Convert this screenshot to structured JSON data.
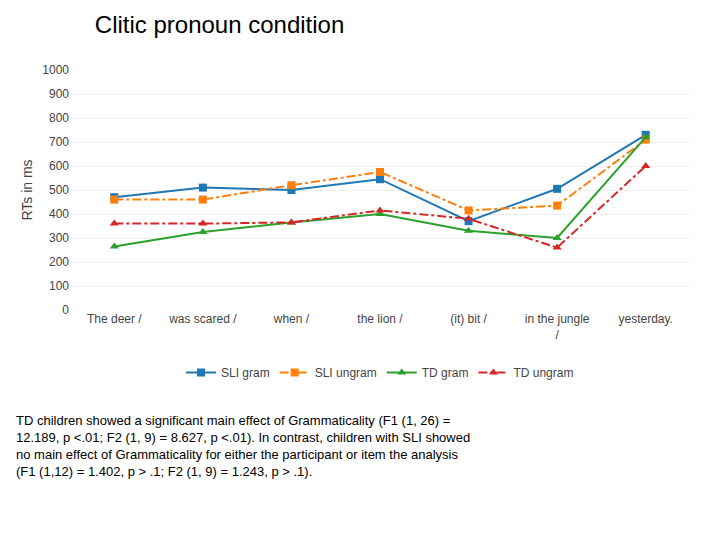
{
  "chart_data": {
    "type": "line",
    "title": "Clitic pronoun condition",
    "y_label": "RTs in ms",
    "categories": [
      "The deer /",
      "was scared /",
      "when /",
      "the lion /",
      "(it) bit /",
      "in the jungle\n/",
      "yesterday."
    ],
    "series": [
      {
        "name": "SLI gram",
        "values": [
          470,
          510,
          500,
          545,
          370,
          505,
          730
        ],
        "line_style": "solid",
        "marker": "square"
      },
      {
        "name": "SLI ungram",
        "values": [
          460,
          460,
          520,
          575,
          415,
          435,
          710
        ],
        "line_style": "dashdot",
        "marker": "square"
      },
      {
        "name": "TD gram",
        "values": [
          265,
          325,
          365,
          400,
          330,
          300,
          720
        ],
        "line_style": "solid",
        "marker": "triangle-up"
      },
      {
        "name": "TD ungram",
        "values": [
          360,
          360,
          365,
          415,
          380,
          260,
          600
        ],
        "line_style": "dashdot",
        "marker": "triangle-up"
      }
    ],
    "ylim": [
      0,
      1000
    ],
    "yticks": [
      0,
      100,
      200,
      300,
      400,
      500,
      600,
      700,
      800,
      900,
      1000
    ],
    "grid": true,
    "legend": "bottom",
    "annotations": [
      "TD children showed a significant main effect of Grammaticality (F1 (1, 26) =\n12.189, p <.01; F2 (1, 9) = 8.627, p <.01). In contrast, children with SLI showed\nno main effect of Grammaticality for either the participant or item the analysis\n(F1 (1,12) = 1.402, p > .1; F2 (1, 9) = 1.243, p > .1)."
    ]
  }
}
